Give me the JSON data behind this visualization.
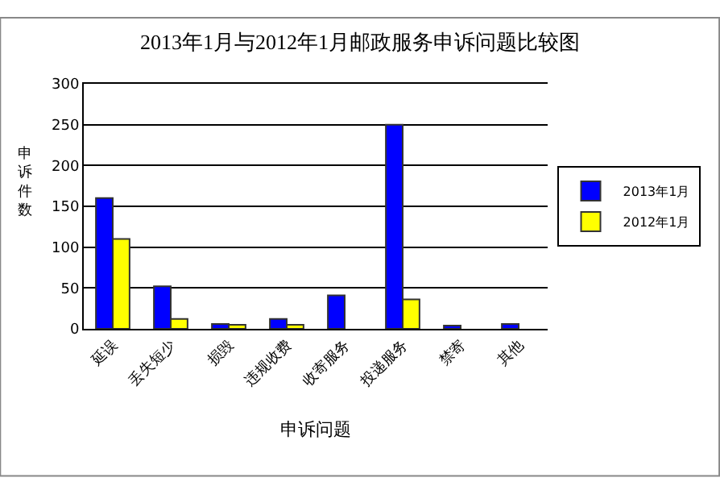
{
  "chart_data": {
    "type": "bar",
    "title": "2013年1月与2012年1月邮政服务申诉问题比较图",
    "xlabel": "申诉问题",
    "ylabel": "申诉件数",
    "categories": [
      "延误",
      "丢失短少",
      "损毁",
      "违规收费",
      "收寄服务",
      "投递服务",
      "禁寄",
      "其他"
    ],
    "series": [
      {
        "name": "2013年1月",
        "color": "#0000ff",
        "values": [
          160,
          52,
          6,
          12,
          41,
          250,
          4,
          6
        ]
      },
      {
        "name": "2012年1月",
        "color": "#ffff00",
        "values": [
          110,
          12,
          5,
          5,
          null,
          36,
          null,
          null
        ]
      }
    ],
    "ylim": [
      0,
      300
    ],
    "yticks": [
      0,
      50,
      100,
      150,
      200,
      250,
      300
    ],
    "grid": "y",
    "legend": "right"
  }
}
